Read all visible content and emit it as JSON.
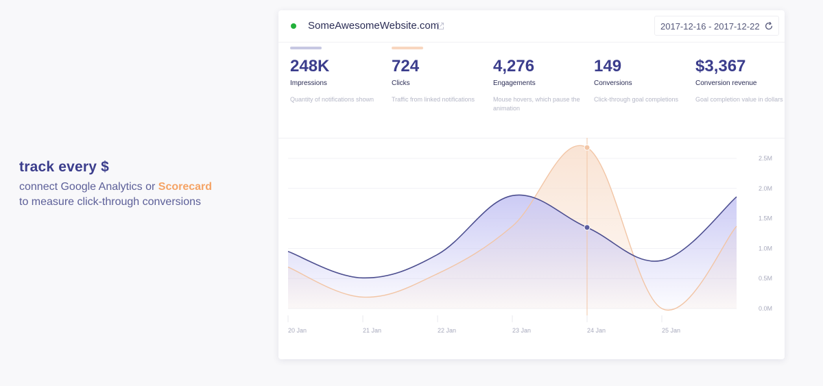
{
  "promo": {
    "title": "track every $",
    "line1_prefix": "connect Google Analytics or ",
    "line1_accent": "Scorecard",
    "line2": "to measure click-through conversions"
  },
  "header": {
    "site_name": "SomeAwesomeWebsite.com",
    "external_link_icon": "external-link-icon",
    "date_range": "2017-12-16 - 2017-12-22",
    "refresh_icon": "refresh-icon",
    "status_color": "#22b03a"
  },
  "metrics": [
    {
      "value": "248K",
      "label": "Impressions",
      "desc": "Quantity of notifications shown",
      "bar_color": "#c7c8e2"
    },
    {
      "value": "724",
      "label": "Clicks",
      "desc": "Traffic from linked notifications",
      "bar_color": "#f8d6bf"
    },
    {
      "value": "4,276",
      "label": "Engagements",
      "desc": "Mouse hovers, which pause the animation"
    },
    {
      "value": "149",
      "label": "Conversions",
      "desc": "Click-through goal completions"
    },
    {
      "value": "$3,367",
      "label": "Conversion revenue",
      "desc": "Goal completion value in dollars"
    }
  ],
  "chart_data": {
    "type": "area",
    "categories": [
      "20 Jan",
      "21 Jan",
      "22 Jan",
      "23 Jan",
      "24 Jan",
      "25 Jan"
    ],
    "y_ticks": [
      "0.0M",
      "0.5M",
      "1.0M",
      "1.5M",
      "2.0M",
      "2.5M"
    ],
    "ylim": [
      0,
      2.5
    ],
    "series": [
      {
        "color": "#4b4d8e",
        "x": [
          0,
          1,
          2,
          3,
          4,
          5,
          6
        ],
        "values": [
          0.95,
          0.51,
          0.9,
          1.88,
          1.35,
          0.8,
          1.86
        ]
      },
      {
        "color": "#f2c5a5",
        "x": [
          0,
          1,
          2,
          3,
          4,
          5,
          6
        ],
        "values": [
          0.69,
          0.19,
          0.58,
          1.37,
          2.68,
          0.0,
          1.37
        ]
      }
    ],
    "highlight_index": 4,
    "grid": true
  }
}
